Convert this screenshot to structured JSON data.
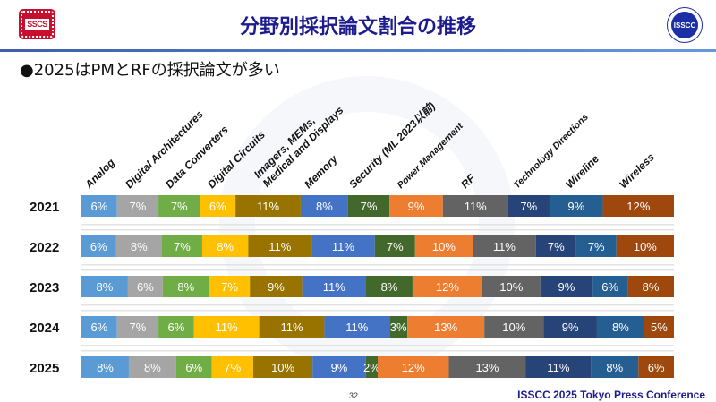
{
  "header": {
    "title": "分野別採択論文割合の推移",
    "logo_left": "SSCS",
    "logo_right": "ISSCC"
  },
  "bullet": "●2025はPMとRFの採択論文が多い",
  "footer": {
    "page_number": "32",
    "conference": "ISSCC 2025 Tokyo Press Conference"
  },
  "chart_data": {
    "type": "bar",
    "orientation": "horizontal",
    "stacked": "100%",
    "categories": [
      "2021",
      "2022",
      "2023",
      "2024",
      "2025"
    ],
    "series": [
      {
        "name": "Analog",
        "color": "#5b9bd5",
        "values": [
          6,
          6,
          8,
          6,
          8
        ]
      },
      {
        "name": "Digital Architectures",
        "color": "#a5a5a5",
        "values": [
          7,
          8,
          6,
          7,
          8
        ]
      },
      {
        "name": "Data Converters",
        "color": "#70ad47",
        "values": [
          7,
          7,
          8,
          6,
          6
        ]
      },
      {
        "name": "Digital Circuits",
        "color": "#ffc000",
        "values": [
          6,
          8,
          7,
          11,
          7
        ]
      },
      {
        "name": "Imagers, MEMs, Medical and Displays",
        "color": "#997300",
        "values": [
          11,
          11,
          9,
          11,
          10
        ]
      },
      {
        "name": "Memory",
        "color": "#4472c4",
        "values": [
          8,
          11,
          11,
          11,
          9
        ]
      },
      {
        "name": "Security (ML 2023以前)",
        "color": "#43682b",
        "values": [
          7,
          7,
          8,
          3,
          2
        ]
      },
      {
        "name": "Power Management",
        "color": "#ed7d31",
        "values": [
          9,
          10,
          12,
          13,
          12
        ]
      },
      {
        "name": "RF",
        "color": "#636363",
        "values": [
          11,
          11,
          10,
          10,
          13
        ]
      },
      {
        "name": "Technology Directions",
        "color": "#264478",
        "values": [
          7,
          7,
          9,
          9,
          11
        ]
      },
      {
        "name": "Wireline",
        "color": "#255e91",
        "values": [
          9,
          7,
          6,
          8,
          8
        ]
      },
      {
        "name": "Wireless",
        "color": "#9e480e",
        "values": [
          12,
          10,
          8,
          5,
          6
        ]
      }
    ],
    "value_suffix": "%",
    "legend": "top (rotated labels)"
  }
}
